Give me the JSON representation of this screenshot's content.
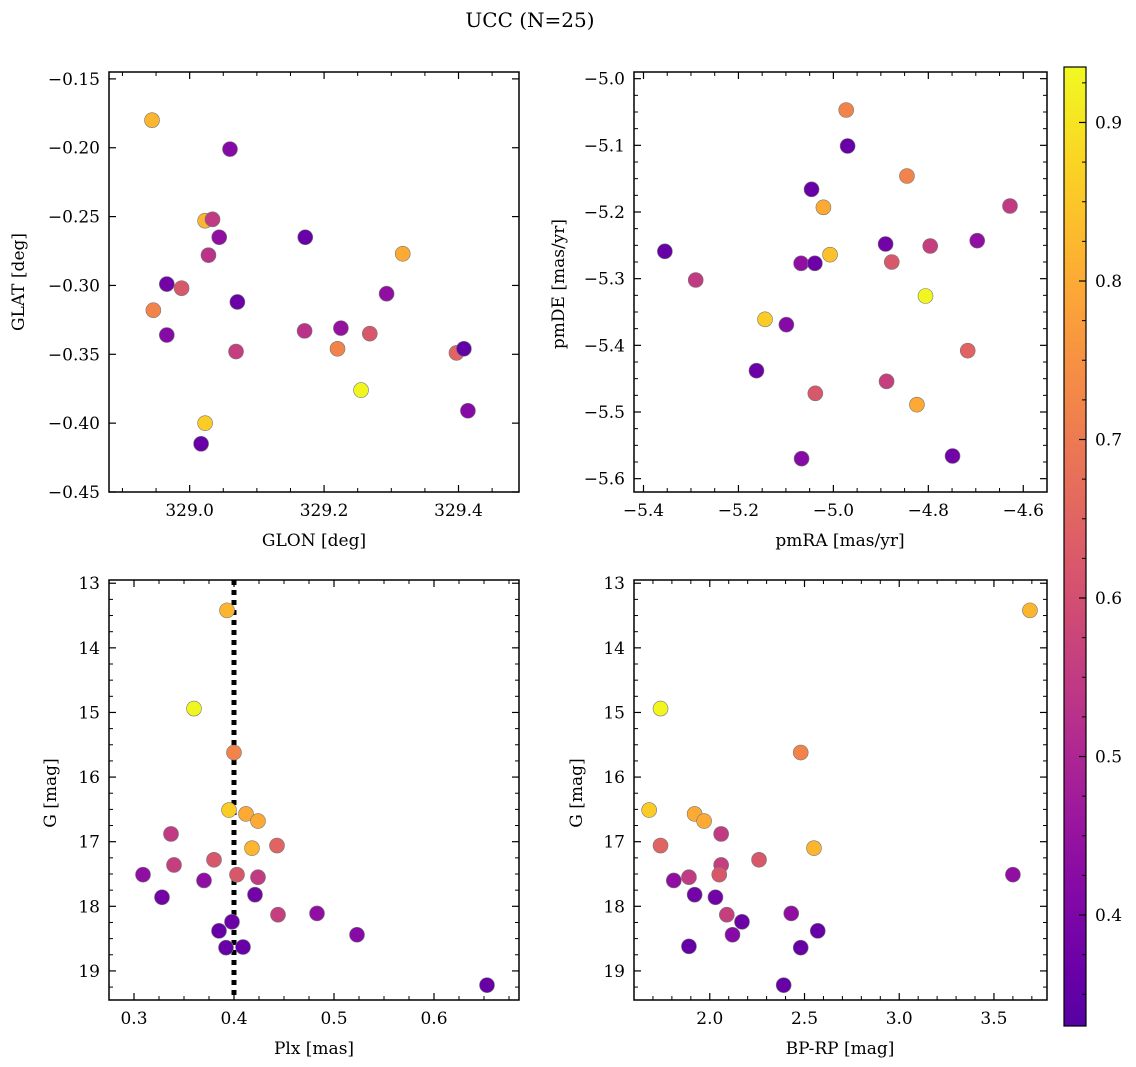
{
  "figure": {
    "title": "UCC (N=25)"
  },
  "colorbar": {
    "colormap": "plasma",
    "vmin": 0.33,
    "vmax": 0.935,
    "ticks": [
      0.4,
      0.5,
      0.6,
      0.7,
      0.8,
      0.9
    ],
    "tick_labels": [
      "0.4",
      "0.5",
      "0.6",
      "0.7",
      "0.8",
      "0.9"
    ]
  },
  "chart_data": [
    {
      "type": "scatter",
      "id": "glon-glat",
      "xlabel": "GLON [deg]",
      "ylabel": "GLAT [deg]",
      "xlim": [
        328.88,
        329.49
      ],
      "ylim": [
        -0.45,
        -0.145
      ],
      "xticks": [
        329.0,
        329.2,
        329.4
      ],
      "xtick_labels": [
        "329.0",
        "329.2",
        "329.4"
      ],
      "yticks": [
        -0.45,
        -0.4,
        -0.35,
        -0.3,
        -0.25,
        -0.2,
        -0.15
      ],
      "ytick_labels": [
        "−0.45",
        "−0.40",
        "−0.35",
        "−0.30",
        "−0.25",
        "−0.20",
        "−0.15"
      ],
      "points": [
        {
          "x": 328.944,
          "y": -0.18,
          "c": 0.82
        },
        {
          "x": 329.06,
          "y": -0.201,
          "c": 0.42
        },
        {
          "x": 329.023,
          "y": -0.253,
          "c": 0.82
        },
        {
          "x": 329.034,
          "y": -0.252,
          "c": 0.55
        },
        {
          "x": 329.044,
          "y": -0.265,
          "c": 0.44
        },
        {
          "x": 329.028,
          "y": -0.278,
          "c": 0.53
        },
        {
          "x": 329.172,
          "y": -0.265,
          "c": 0.36
        },
        {
          "x": 329.317,
          "y": -0.277,
          "c": 0.8
        },
        {
          "x": 328.966,
          "y": -0.299,
          "c": 0.38
        },
        {
          "x": 328.988,
          "y": -0.302,
          "c": 0.62
        },
        {
          "x": 328.946,
          "y": -0.318,
          "c": 0.72
        },
        {
          "x": 329.071,
          "y": -0.312,
          "c": 0.37
        },
        {
          "x": 329.293,
          "y": -0.306,
          "c": 0.44
        },
        {
          "x": 329.171,
          "y": -0.333,
          "c": 0.53
        },
        {
          "x": 329.225,
          "y": -0.331,
          "c": 0.45
        },
        {
          "x": 329.268,
          "y": -0.335,
          "c": 0.62
        },
        {
          "x": 328.966,
          "y": -0.336,
          "c": 0.42
        },
        {
          "x": 329.069,
          "y": -0.348,
          "c": 0.56
        },
        {
          "x": 329.22,
          "y": -0.346,
          "c": 0.72
        },
        {
          "x": 329.397,
          "y": -0.349,
          "c": 0.65
        },
        {
          "x": 329.408,
          "y": -0.346,
          "c": 0.35
        },
        {
          "x": 329.255,
          "y": -0.376,
          "c": 0.93
        },
        {
          "x": 329.414,
          "y": -0.391,
          "c": 0.42
        },
        {
          "x": 329.023,
          "y": -0.4,
          "c": 0.86
        },
        {
          "x": 329.017,
          "y": -0.415,
          "c": 0.36
        }
      ]
    },
    {
      "type": "scatter",
      "id": "pmra-pmde",
      "xlabel": "pmRA [mas/yr]",
      "ylabel": "pmDE [mas/yr]",
      "xlim": [
        -5.42,
        -4.55
      ],
      "ylim": [
        -5.62,
        -4.99
      ],
      "xticks": [
        -5.4,
        -5.2,
        -5.0,
        -4.8,
        -4.6
      ],
      "xtick_labels": [
        "−5.4",
        "−5.2",
        "−5.0",
        "−4.8",
        "−4.6"
      ],
      "yticks": [
        -5.6,
        -5.5,
        -5.4,
        -5.3,
        -5.2,
        -5.1,
        -5.0
      ],
      "ytick_labels": [
        "−5.6",
        "−5.5",
        "−5.4",
        "−5.3",
        "−5.2",
        "−5.1",
        "−5.0"
      ],
      "points": [
        {
          "x": -4.973,
          "y": -5.047,
          "c": 0.72
        },
        {
          "x": -4.97,
          "y": -5.101,
          "c": 0.36
        },
        {
          "x": -4.845,
          "y": -5.146,
          "c": 0.72
        },
        {
          "x": -5.046,
          "y": -5.166,
          "c": 0.36
        },
        {
          "x": -4.628,
          "y": -5.191,
          "c": 0.55
        },
        {
          "x": -5.021,
          "y": -5.193,
          "c": 0.8
        },
        {
          "x": -4.89,
          "y": -5.248,
          "c": 0.38
        },
        {
          "x": -4.796,
          "y": -5.251,
          "c": 0.56
        },
        {
          "x": -4.697,
          "y": -5.243,
          "c": 0.44
        },
        {
          "x": -5.355,
          "y": -5.259,
          "c": 0.36
        },
        {
          "x": -5.007,
          "y": -5.264,
          "c": 0.84
        },
        {
          "x": -5.068,
          "y": -5.277,
          "c": 0.44
        },
        {
          "x": -5.039,
          "y": -5.277,
          "c": 0.37
        },
        {
          "x": -4.877,
          "y": -5.275,
          "c": 0.62
        },
        {
          "x": -5.29,
          "y": -5.302,
          "c": 0.55
        },
        {
          "x": -4.806,
          "y": -5.326,
          "c": 0.93
        },
        {
          "x": -5.144,
          "y": -5.361,
          "c": 0.86
        },
        {
          "x": -5.099,
          "y": -5.369,
          "c": 0.42
        },
        {
          "x": -4.717,
          "y": -5.408,
          "c": 0.65
        },
        {
          "x": -5.162,
          "y": -5.438,
          "c": 0.37
        },
        {
          "x": -4.888,
          "y": -5.454,
          "c": 0.56
        },
        {
          "x": -5.038,
          "y": -5.472,
          "c": 0.62
        },
        {
          "x": -4.824,
          "y": -5.489,
          "c": 0.8
        },
        {
          "x": -4.749,
          "y": -5.566,
          "c": 0.38
        },
        {
          "x": -5.067,
          "y": -5.57,
          "c": 0.42
        }
      ]
    },
    {
      "type": "scatter",
      "id": "plx-g",
      "xlabel": "Plx [mas]",
      "ylabel": "G [mag]",
      "xlim": [
        0.275,
        0.685
      ],
      "ylim": [
        19.45,
        12.95
      ],
      "y_inverted": true,
      "xticks": [
        0.3,
        0.4,
        0.5,
        0.6
      ],
      "xtick_labels": [
        "0.3",
        "0.4",
        "0.5",
        "0.6"
      ],
      "yticks": [
        13,
        14,
        15,
        16,
        17,
        18,
        19
      ],
      "ytick_labels": [
        "13",
        "14",
        "15",
        "16",
        "17",
        "18",
        "19"
      ],
      "reference_line": {
        "x": 0.4,
        "style": "dotted"
      },
      "points": [
        {
          "x": 0.393,
          "y": 13.42,
          "c": 0.82
        },
        {
          "x": 0.36,
          "y": 14.94,
          "c": 0.93
        },
        {
          "x": 0.4,
          "y": 15.62,
          "c": 0.72
        },
        {
          "x": 0.395,
          "y": 16.51,
          "c": 0.86
        },
        {
          "x": 0.412,
          "y": 16.57,
          "c": 0.8
        },
        {
          "x": 0.424,
          "y": 16.68,
          "c": 0.8
        },
        {
          "x": 0.337,
          "y": 16.88,
          "c": 0.55
        },
        {
          "x": 0.443,
          "y": 17.06,
          "c": 0.65
        },
        {
          "x": 0.418,
          "y": 17.1,
          "c": 0.82
        },
        {
          "x": 0.38,
          "y": 17.28,
          "c": 0.62
        },
        {
          "x": 0.34,
          "y": 17.36,
          "c": 0.56
        },
        {
          "x": 0.309,
          "y": 17.51,
          "c": 0.44
        },
        {
          "x": 0.403,
          "y": 17.51,
          "c": 0.62
        },
        {
          "x": 0.424,
          "y": 17.55,
          "c": 0.55
        },
        {
          "x": 0.37,
          "y": 17.6,
          "c": 0.44
        },
        {
          "x": 0.421,
          "y": 17.82,
          "c": 0.38
        },
        {
          "x": 0.328,
          "y": 17.86,
          "c": 0.38
        },
        {
          "x": 0.483,
          "y": 18.11,
          "c": 0.44
        },
        {
          "x": 0.444,
          "y": 18.13,
          "c": 0.56
        },
        {
          "x": 0.398,
          "y": 18.24,
          "c": 0.37
        },
        {
          "x": 0.385,
          "y": 18.38,
          "c": 0.36
        },
        {
          "x": 0.523,
          "y": 18.44,
          "c": 0.42
        },
        {
          "x": 0.392,
          "y": 18.64,
          "c": 0.36
        },
        {
          "x": 0.409,
          "y": 18.63,
          "c": 0.36
        },
        {
          "x": 0.653,
          "y": 19.22,
          "c": 0.36
        }
      ]
    },
    {
      "type": "scatter",
      "id": "bprp-g",
      "xlabel": "BP-RP [mag]",
      "ylabel": "G [mag]",
      "xlim": [
        1.6,
        3.78
      ],
      "ylim": [
        19.45,
        12.95
      ],
      "y_inverted": true,
      "xticks": [
        2.0,
        2.5,
        3.0,
        3.5
      ],
      "xtick_labels": [
        "2.0",
        "2.5",
        "3.0",
        "3.5"
      ],
      "yticks": [
        13,
        14,
        15,
        16,
        17,
        18,
        19
      ],
      "ytick_labels": [
        "13",
        "14",
        "15",
        "16",
        "17",
        "18",
        "19"
      ],
      "points": [
        {
          "x": 3.69,
          "y": 13.42,
          "c": 0.82
        },
        {
          "x": 1.74,
          "y": 14.94,
          "c": 0.93
        },
        {
          "x": 2.48,
          "y": 15.62,
          "c": 0.72
        },
        {
          "x": 1.68,
          "y": 16.51,
          "c": 0.86
        },
        {
          "x": 1.92,
          "y": 16.57,
          "c": 0.8
        },
        {
          "x": 1.97,
          "y": 16.68,
          "c": 0.8
        },
        {
          "x": 2.06,
          "y": 16.88,
          "c": 0.55
        },
        {
          "x": 1.74,
          "y": 17.06,
          "c": 0.65
        },
        {
          "x": 2.55,
          "y": 17.1,
          "c": 0.82
        },
        {
          "x": 2.26,
          "y": 17.28,
          "c": 0.62
        },
        {
          "x": 2.06,
          "y": 17.36,
          "c": 0.56
        },
        {
          "x": 3.6,
          "y": 17.51,
          "c": 0.44
        },
        {
          "x": 2.05,
          "y": 17.51,
          "c": 0.62
        },
        {
          "x": 1.89,
          "y": 17.55,
          "c": 0.55
        },
        {
          "x": 1.81,
          "y": 17.6,
          "c": 0.44
        },
        {
          "x": 2.03,
          "y": 17.86,
          "c": 0.38
        },
        {
          "x": 1.92,
          "y": 17.82,
          "c": 0.38
        },
        {
          "x": 2.43,
          "y": 18.11,
          "c": 0.44
        },
        {
          "x": 2.09,
          "y": 18.13,
          "c": 0.56
        },
        {
          "x": 2.17,
          "y": 18.24,
          "c": 0.37
        },
        {
          "x": 2.57,
          "y": 18.38,
          "c": 0.36
        },
        {
          "x": 2.12,
          "y": 18.44,
          "c": 0.42
        },
        {
          "x": 1.89,
          "y": 18.62,
          "c": 0.36
        },
        {
          "x": 2.48,
          "y": 18.64,
          "c": 0.36
        },
        {
          "x": 2.39,
          "y": 19.22,
          "c": 0.36
        }
      ]
    }
  ]
}
